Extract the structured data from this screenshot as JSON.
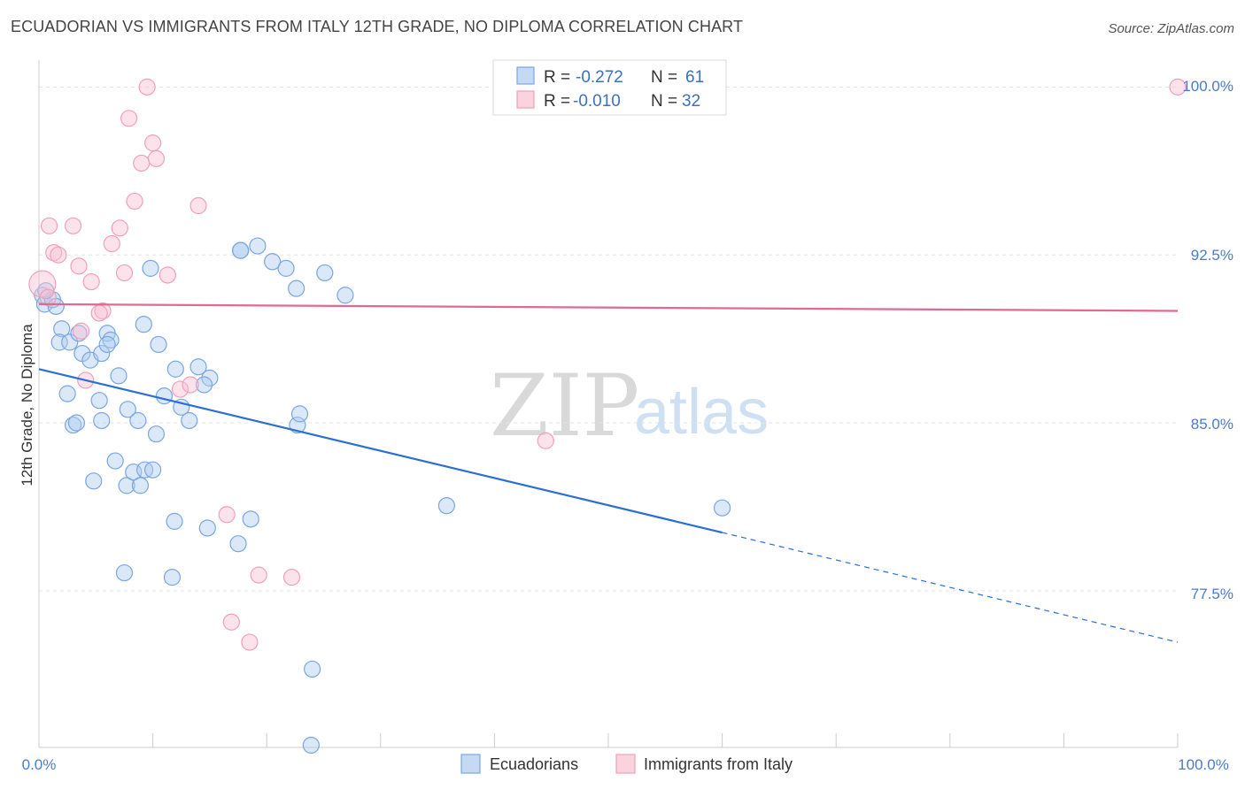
{
  "title": "ECUADORIAN VS IMMIGRANTS FROM ITALY 12TH GRADE, NO DIPLOMA CORRELATION CHART",
  "source": "Source: ZipAtlas.com",
  "watermark": {
    "zip": "ZIP",
    "atlas": "atlas"
  },
  "colors": {
    "blue": "#7aa6e0",
    "pink": "#f0a0b8",
    "blue_line": "#2a6fd1",
    "pink_line": "#e06a90"
  },
  "legend": {
    "rows": [
      {
        "r_label": "R = ",
        "r_value": "-0.272",
        "n_label": "N = ",
        "n_value": "61"
      },
      {
        "r_label": "R = ",
        "r_value": "-0.010",
        "n_label": "N = ",
        "n_value": "32"
      }
    ]
  },
  "chart_data": {
    "type": "scatter",
    "title": "ECUADORIAN VS IMMIGRANTS FROM ITALY 12TH GRADE, NO DIPLOMA CORRELATION CHART",
    "xlabel": "",
    "ylabel": "12th Grade, No Diploma",
    "xlim": [
      0,
      100
    ],
    "ylim": [
      70.5,
      101.2
    ],
    "x_tick_labels": [
      "0.0%",
      "100.0%"
    ],
    "y_ticks": [
      77.5,
      85.0,
      92.5,
      100.0
    ],
    "y_tick_labels": [
      "77.5%",
      "85.0%",
      "92.5%",
      "100.0%"
    ],
    "series": [
      {
        "name": "Ecuadorians",
        "color": "#7aa6e0",
        "points": [
          [
            0.3,
            90.7
          ],
          [
            0.5,
            90.3
          ],
          [
            1.2,
            90.5
          ],
          [
            1.5,
            90.2
          ],
          [
            2.0,
            89.2
          ],
          [
            1.8,
            88.6
          ],
          [
            2.7,
            88.6
          ],
          [
            3.5,
            89.0
          ],
          [
            3.8,
            88.1
          ],
          [
            4.5,
            87.8
          ],
          [
            6.0,
            89.0
          ],
          [
            6.3,
            88.7
          ],
          [
            5.5,
            88.1
          ],
          [
            6.0,
            88.5
          ],
          [
            7.0,
            87.1
          ],
          [
            9.2,
            89.4
          ],
          [
            10.5,
            88.5
          ],
          [
            9.8,
            91.9
          ],
          [
            12.0,
            87.4
          ],
          [
            14.0,
            87.5
          ],
          [
            15.0,
            87.0
          ],
          [
            14.5,
            86.7
          ],
          [
            2.5,
            86.3
          ],
          [
            5.3,
            86.0
          ],
          [
            3.0,
            84.9
          ],
          [
            3.3,
            85.0
          ],
          [
            5.5,
            85.1
          ],
          [
            7.8,
            85.6
          ],
          [
            8.7,
            85.1
          ],
          [
            10.3,
            84.5
          ],
          [
            11.0,
            86.2
          ],
          [
            12.5,
            85.7
          ],
          [
            13.2,
            85.1
          ],
          [
            4.8,
            82.4
          ],
          [
            6.7,
            83.3
          ],
          [
            7.7,
            82.2
          ],
          [
            8.3,
            82.8
          ],
          [
            8.9,
            82.2
          ],
          [
            9.3,
            82.9
          ],
          [
            10.0,
            82.9
          ],
          [
            11.9,
            80.6
          ],
          [
            14.8,
            80.3
          ],
          [
            17.5,
            79.6
          ],
          [
            18.6,
            80.7
          ],
          [
            7.5,
            78.3
          ],
          [
            11.7,
            78.1
          ],
          [
            17.7,
            92.7
          ],
          [
            17.7,
            92.7
          ],
          [
            19.2,
            92.9
          ],
          [
            20.5,
            92.2
          ],
          [
            21.7,
            91.9
          ],
          [
            22.6,
            91.0
          ],
          [
            25.1,
            91.7
          ],
          [
            26.9,
            90.7
          ],
          [
            22.7,
            84.9
          ],
          [
            22.9,
            85.4
          ],
          [
            24.0,
            74.0
          ],
          [
            23.9,
            70.6
          ],
          [
            35.8,
            81.3
          ],
          [
            60.0,
            81.2
          ],
          [
            0.6,
            90.9
          ]
        ]
      },
      {
        "name": "Immigrants from Italy",
        "color": "#f0a0b8",
        "points": [
          [
            0.3,
            91.2
          ],
          [
            0.8,
            90.6
          ],
          [
            0.9,
            93.8
          ],
          [
            1.3,
            92.6
          ],
          [
            1.7,
            92.5
          ],
          [
            3.0,
            93.8
          ],
          [
            3.5,
            92.0
          ],
          [
            3.7,
            89.1
          ],
          [
            4.6,
            91.3
          ],
          [
            5.6,
            90.0
          ],
          [
            6.4,
            93.0
          ],
          [
            7.1,
            93.7
          ],
          [
            7.5,
            91.7
          ],
          [
            7.9,
            98.6
          ],
          [
            8.4,
            94.9
          ],
          [
            9.0,
            96.6
          ],
          [
            9.5,
            100.0
          ],
          [
            10.0,
            97.5
          ],
          [
            10.3,
            96.8
          ],
          [
            11.3,
            91.6
          ],
          [
            14.0,
            94.7
          ],
          [
            12.4,
            86.5
          ],
          [
            13.3,
            86.7
          ],
          [
            4.1,
            86.9
          ],
          [
            16.5,
            80.9
          ],
          [
            16.9,
            76.1
          ],
          [
            18.5,
            75.2
          ],
          [
            19.3,
            78.2
          ],
          [
            22.2,
            78.1
          ],
          [
            44.5,
            84.2
          ],
          [
            100.0,
            100.0
          ],
          [
            5.3,
            89.9
          ]
        ]
      }
    ],
    "trend_lines": [
      {
        "series": "Ecuadorians",
        "x_start": 0,
        "y_start": 87.4,
        "x_solid_end": 60,
        "y_solid_end": 80.1,
        "x_end": 100,
        "y_end": 75.2
      },
      {
        "series": "Immigrants from Italy",
        "x_start": 0,
        "y_start": 90.3,
        "x_end": 100,
        "y_end": 90.0
      }
    ]
  }
}
